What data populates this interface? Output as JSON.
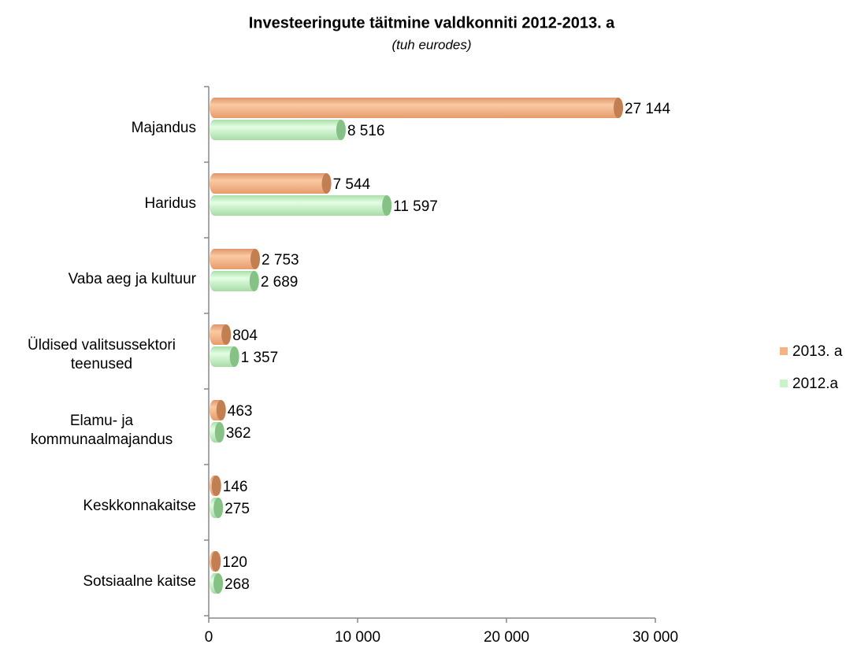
{
  "chart_data": {
    "type": "hbar",
    "title": "Investeeringute täitmine valdkonniti 2012-2013. a",
    "subtitle": "(tuh eurodes)",
    "categories": [
      "Majandus",
      "Haridus",
      "Vaba aeg ja kultuur",
      "Üldised valitsussektori teenused",
      "Elamu- ja kommunaalmajandus",
      "Keskkonnakaitse",
      "Sotsiaalne kaitse"
    ],
    "series": [
      {
        "name": "2013. a",
        "color": "#f6b37f",
        "values": [
          27144,
          7544,
          2753,
          804,
          463,
          146,
          120
        ],
        "value_labels": [
          "27 144",
          "7 544",
          "2 753",
          "804",
          "463",
          "146",
          "120"
        ]
      },
      {
        "name": "2012.a",
        "color": "#c8f5c8",
        "values": [
          8516,
          11597,
          2689,
          1357,
          362,
          275,
          268
        ],
        "value_labels": [
          "8 516",
          "11 597",
          "2 689",
          "1 357",
          "362",
          "275",
          "268"
        ]
      }
    ],
    "xlim": [
      0,
      30000
    ],
    "xticks": [
      0,
      {
        "value": 10000,
        "label": "10 000"
      },
      {
        "value": 20000,
        "label": "20 000"
      },
      {
        "value": 30000,
        "label": "30 000"
      }
    ],
    "legend": "right"
  }
}
